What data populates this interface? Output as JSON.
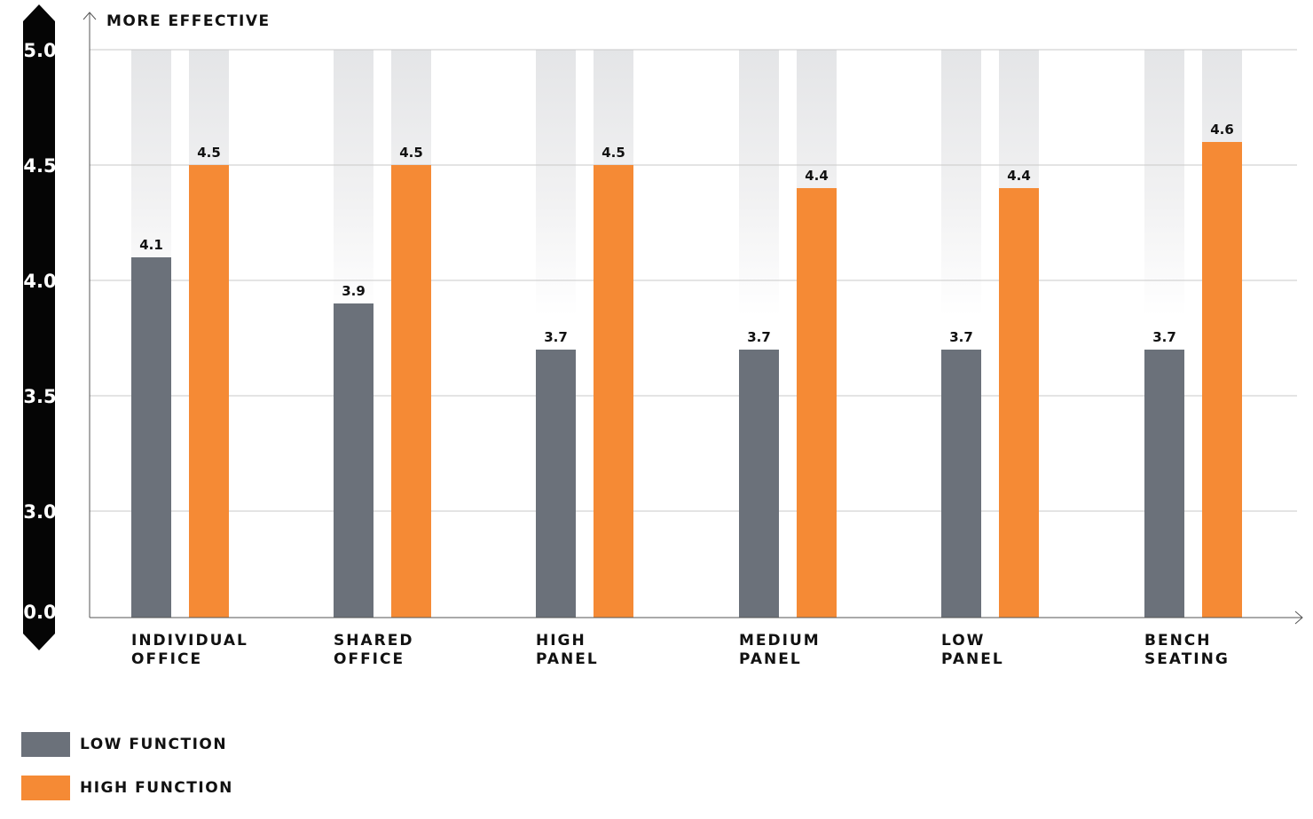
{
  "chart_data": {
    "type": "bar",
    "ylabel": "MORE EFFECTIVE",
    "yticks": [
      "0.0",
      "3.0",
      "3.5",
      "4.0",
      "4.5",
      "5.0"
    ],
    "ylim": [
      3.0,
      5.0
    ],
    "axis_break": "0.0 to 3.0",
    "grid": true,
    "legend_position": "bottom-left",
    "categories": [
      [
        "INDIVIDUAL",
        "OFFICE"
      ],
      [
        "SHARED",
        "OFFICE"
      ],
      [
        "HIGH",
        "PANEL"
      ],
      [
        "MEDIUM",
        "PANEL"
      ],
      [
        "LOW",
        "PANEL"
      ],
      [
        "BENCH",
        "SEATING"
      ]
    ],
    "series": [
      {
        "name": "LOW FUNCTION",
        "color": "#6b717a",
        "values": [
          4.1,
          3.9,
          3.7,
          3.7,
          3.7,
          3.7
        ],
        "labels": [
          "4.1",
          "3.9",
          "3.7",
          "3.7",
          "3.7",
          "3.7"
        ]
      },
      {
        "name": "HIGH FUNCTION",
        "color": "#f58a35",
        "values": [
          4.5,
          4.5,
          4.5,
          4.4,
          4.4,
          4.6
        ],
        "labels": [
          "4.5",
          "4.5",
          "4.5",
          "4.4",
          "4.4",
          "4.6"
        ]
      }
    ]
  },
  "legend": [
    {
      "label": "LOW FUNCTION",
      "color": "#6b717a"
    },
    {
      "label": "HIGH FUNCTION",
      "color": "#f58a35"
    }
  ]
}
